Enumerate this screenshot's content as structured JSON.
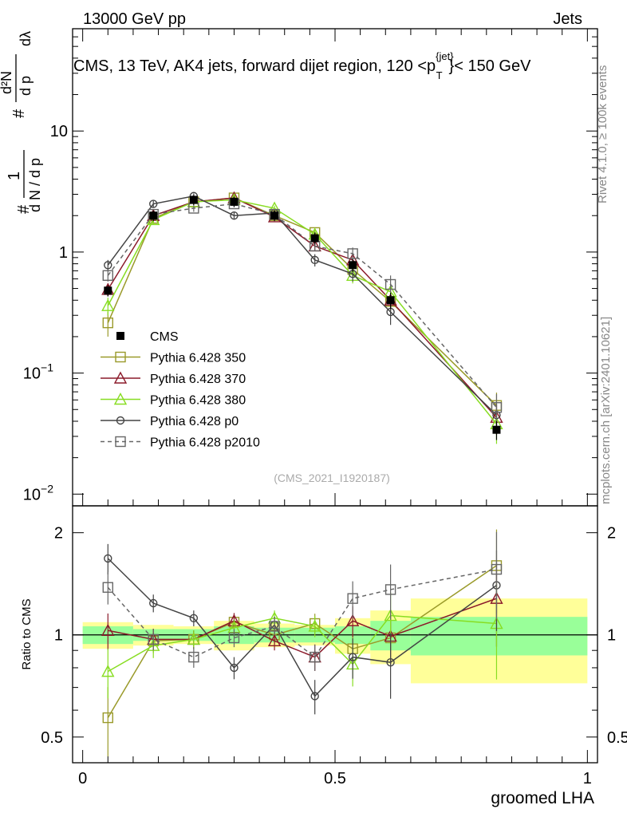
{
  "header": {
    "left": "13000 GeV pp",
    "right": "Jets"
  },
  "plot_title": "CMS, 13 TeV, AK4 jets, forward dijet region, 120 <p",
  "plot_title_sup": "{jet}",
  "plot_title_sub": "T",
  "plot_title_end": "}< 150 GeV",
  "side_labels": {
    "rivet": "Rivet 4.1.0, ≥ 100k events",
    "mcplots": "mcplots.cern.ch [arXiv:2401.10621]"
  },
  "watermark": "(CMS_2021_I1920187)",
  "ylabel_upper": {
    "hash": "#",
    "one": "1",
    "denom": "d N / d p",
    "denom_sub": "T",
    "num": "d²N",
    "den2": "d p",
    "den2_sub": "T",
    "dlambda": "dλ"
  },
  "ylabel_lower": "Ratio to CMS",
  "xlabel": "groomed LHA",
  "yticks_upper": [
    {
      "label": "10",
      "sup": "−2",
      "v": 0.01
    },
    {
      "label": "10",
      "sup": "−1",
      "v": 0.1
    },
    {
      "label": "1",
      "sup": "",
      "v": 1
    },
    {
      "label": "10",
      "sup": "",
      "v": 10
    }
  ],
  "yticks_lower": [
    {
      "label": "0.5",
      "v": 0.5
    },
    {
      "label": "1",
      "v": 1
    },
    {
      "label": "2",
      "v": 2
    }
  ],
  "xticks": [
    {
      "label": "0",
      "v": 0
    },
    {
      "label": "0.5",
      "v": 0.5
    },
    {
      "label": "1",
      "v": 1
    }
  ],
  "chart_data": {
    "type": "scatter",
    "x_range": [
      -0.02,
      1.02
    ],
    "y_range_upper": [
      0.008,
      70
    ],
    "y_range_lower": [
      0.42,
      2.4
    ],
    "log_y": true,
    "x": [
      0.05,
      0.14,
      0.22,
      0.3,
      0.38,
      0.46,
      0.535,
      0.61,
      0.82
    ],
    "bin_edges": [
      0,
      0.1,
      0.18,
      0.26,
      0.34,
      0.42,
      0.5,
      0.57,
      0.65,
      1.0
    ],
    "data": {
      "name": "CMS",
      "values": [
        0.48,
        2.0,
        2.7,
        2.6,
        2.0,
        1.3,
        0.78,
        0.4,
        0.034
      ],
      "errors": [
        0.05,
        0.2,
        0.25,
        0.25,
        0.2,
        0.15,
        0.09,
        0.06,
        0.006
      ]
    },
    "band_inner": [
      0.06,
      0.04,
      0.04,
      0.06,
      0.05,
      0.05,
      0.06,
      0.1,
      0.13
    ],
    "band_outer": [
      0.09,
      0.07,
      0.06,
      0.1,
      0.08,
      0.07,
      0.12,
      0.18,
      0.28
    ],
    "series": [
      {
        "name": "Pythia 6.428 350",
        "color": "#9a9a2a",
        "marker": "square-open",
        "dash": false,
        "values": [
          0.26,
          1.9,
          2.6,
          2.8,
          2.0,
          1.45,
          0.72,
          0.39,
          0.054
        ],
        "errors": [
          0.06,
          0.15,
          0.15,
          0.15,
          0.12,
          0.1,
          0.08,
          0.07,
          0.015
        ],
        "ratio": [
          0.57,
          0.96,
          0.97,
          1.09,
          1.0,
          1.08,
          0.91,
          0.98,
          1.6
        ]
      },
      {
        "name": "Pythia 6.428 370",
        "color": "#8b1a2a",
        "marker": "triangle-open",
        "dash": false,
        "values": [
          0.49,
          2.0,
          2.6,
          2.8,
          1.95,
          1.12,
          0.86,
          0.4,
          0.043
        ],
        "errors": [
          0.06,
          0.15,
          0.15,
          0.15,
          0.12,
          0.1,
          0.09,
          0.07,
          0.012
        ],
        "ratio": [
          1.03,
          0.97,
          0.97,
          1.1,
          0.96,
          0.86,
          1.1,
          0.99,
          1.28
        ]
      },
      {
        "name": "Pythia 6.428 380",
        "color": "#88dd22",
        "marker": "triangle-open",
        "dash": false,
        "values": [
          0.36,
          1.85,
          2.6,
          2.7,
          2.3,
          1.4,
          0.64,
          0.47,
          0.038
        ],
        "errors": [
          0.06,
          0.15,
          0.15,
          0.15,
          0.12,
          0.1,
          0.09,
          0.08,
          0.012
        ],
        "ratio": [
          0.78,
          0.93,
          0.97,
          1.05,
          1.12,
          1.06,
          0.82,
          1.14,
          1.08
        ]
      },
      {
        "name": "Pythia 6.428 p0",
        "color": "#444444",
        "marker": "circle-open",
        "dash": false,
        "values": [
          0.78,
          2.5,
          2.9,
          2.0,
          2.1,
          0.86,
          0.66,
          0.32,
          0.045
        ],
        "errors": [
          0.08,
          0.15,
          0.15,
          0.15,
          0.12,
          0.1,
          0.09,
          0.07,
          0.012
        ],
        "ratio": [
          1.68,
          1.24,
          1.12,
          0.8,
          1.07,
          0.66,
          0.86,
          0.83,
          1.4
        ]
      },
      {
        "name": "Pythia 6.428 p2010",
        "color": "#666666",
        "marker": "square-open",
        "dash": true,
        "values": [
          0.64,
          2.05,
          2.3,
          2.5,
          2.05,
          1.12,
          0.97,
          0.54,
          0.052
        ],
        "errors": [
          0.07,
          0.15,
          0.15,
          0.15,
          0.12,
          0.1,
          0.12,
          0.1,
          0.015
        ],
        "ratio": [
          1.38,
          0.97,
          0.86,
          0.98,
          1.06,
          0.86,
          1.28,
          1.36,
          1.56
        ]
      }
    ]
  }
}
